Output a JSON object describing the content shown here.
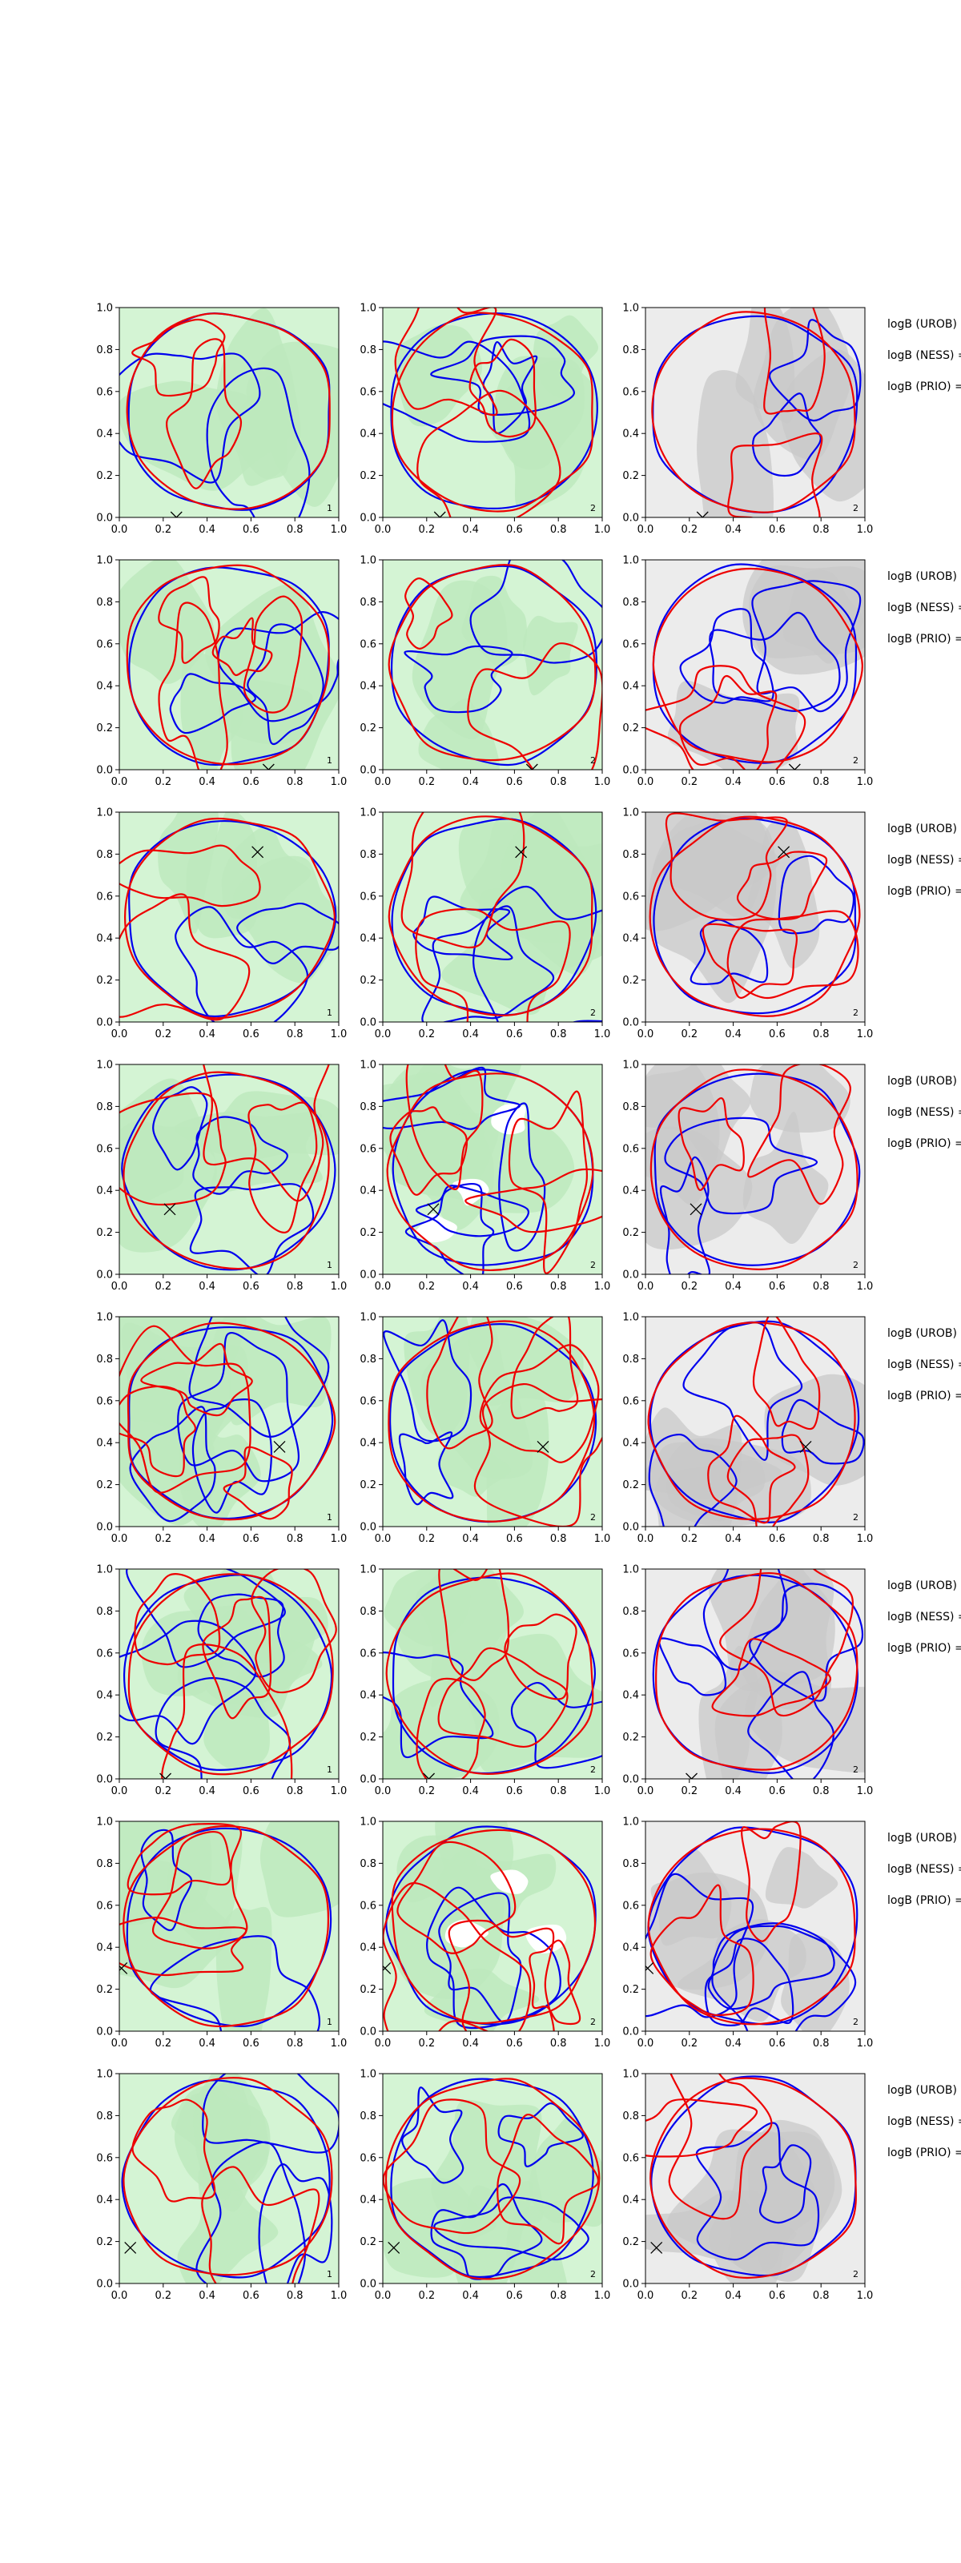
{
  "chart_data": {
    "type": "contour",
    "layout": {
      "rows": 8,
      "cols": 3
    },
    "xlim": [
      0,
      1
    ],
    "ylim": [
      0,
      1
    ],
    "xticks": [
      "0.0",
      "0.2",
      "0.4",
      "0.6",
      "0.8",
      "1.0"
    ],
    "yticks": [
      "0.0",
      "0.2",
      "0.4",
      "0.6",
      "0.8",
      "1.0"
    ],
    "row_text": [
      "logB (UROB) =",
      "logB (NESS) =",
      "logB (PRIO) ="
    ],
    "corner_labels": [
      "1",
      "2",
      "2"
    ],
    "marker": "x",
    "rows": [
      {
        "marker": [
          0.26,
          0.0
        ]
      },
      {
        "marker": [
          0.68,
          0.0
        ]
      },
      {
        "marker": [
          0.63,
          0.81
        ]
      },
      {
        "marker": [
          0.23,
          0.31
        ]
      },
      {
        "marker": [
          0.73,
          0.38
        ]
      },
      {
        "marker": [
          0.21,
          0.0
        ]
      },
      {
        "marker": [
          0.01,
          0.3
        ]
      },
      {
        "marker": [
          0.05,
          0.17
        ]
      }
    ],
    "colors": {
      "contour_a": "#0000ee",
      "contour_b": "#ee0000",
      "fill_green_light": "#d4f4d4",
      "fill_green_mid": "#bde9bd",
      "fill_grey_light": "#e3e3e3",
      "fill_grey_mid": "#c8c8c8",
      "panel_bg_grey": "#ececec"
    }
  }
}
